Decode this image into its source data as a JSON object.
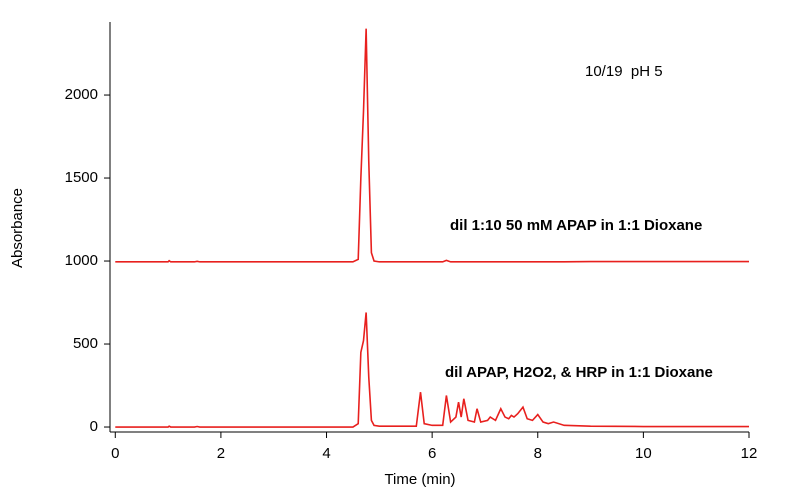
{
  "chart_data": {
    "type": "line",
    "xlabel": "Time (min)",
    "ylabel": "Absorbance",
    "annotations": [
      "10/19  pH 5",
      "dil 1:10 50 mM APAP in 1:1 Dioxane",
      "dil APAP, H2O2, & HRP in 1:1 Dioxane"
    ],
    "x": [
      0,
      1,
      1.02,
      1.05,
      1.5,
      1.55,
      1.6,
      4.5,
      4.6,
      4.65,
      4.7,
      4.75,
      4.8,
      4.85,
      4.9,
      5.0,
      5.7,
      5.78,
      5.85,
      6.0,
      6.2,
      6.27,
      6.35,
      6.45,
      6.5,
      6.55,
      6.6,
      6.68,
      6.8,
      6.85,
      6.92,
      7.05,
      7.1,
      7.2,
      7.3,
      7.38,
      7.45,
      7.5,
      7.55,
      7.62,
      7.72,
      7.8,
      7.9,
      8.0,
      8.1,
      8.2,
      8.3,
      8.5,
      9,
      10,
      12
    ],
    "series": [
      {
        "color": "#e8201e",
        "values": [
          995,
          995,
          1002,
          995,
          995,
          998,
          995,
          995,
          1010,
          1500,
          1900,
          2400,
          1600,
          1050,
          1000,
          995,
          995,
          995,
          995,
          995,
          995,
          1004,
          995,
          995,
          995,
          995,
          995,
          995,
          995,
          995,
          995,
          995,
          995,
          995,
          995,
          995,
          995,
          995,
          995,
          995,
          995,
          995,
          995,
          995,
          995,
          995,
          995,
          995,
          997,
          997,
          997
        ]
      },
      {
        "color": "#e8201e",
        "values": [
          0,
          0,
          5,
          0,
          0,
          3,
          0,
          0,
          20,
          450,
          520,
          690,
          300,
          40,
          10,
          5,
          5,
          210,
          20,
          10,
          10,
          190,
          30,
          60,
          150,
          60,
          170,
          40,
          30,
          110,
          30,
          40,
          60,
          40,
          110,
          60,
          50,
          70,
          60,
          80,
          120,
          50,
          40,
          75,
          30,
          20,
          30,
          10,
          5,
          3,
          3
        ]
      }
    ],
    "xlim": [
      -0.1,
      12
    ],
    "ylim": [
      -30,
      2440
    ],
    "xticks": [
      0,
      2,
      4,
      6,
      8,
      10,
      12
    ],
    "yticks": [
      0,
      500,
      1000,
      1500,
      2000
    ]
  }
}
